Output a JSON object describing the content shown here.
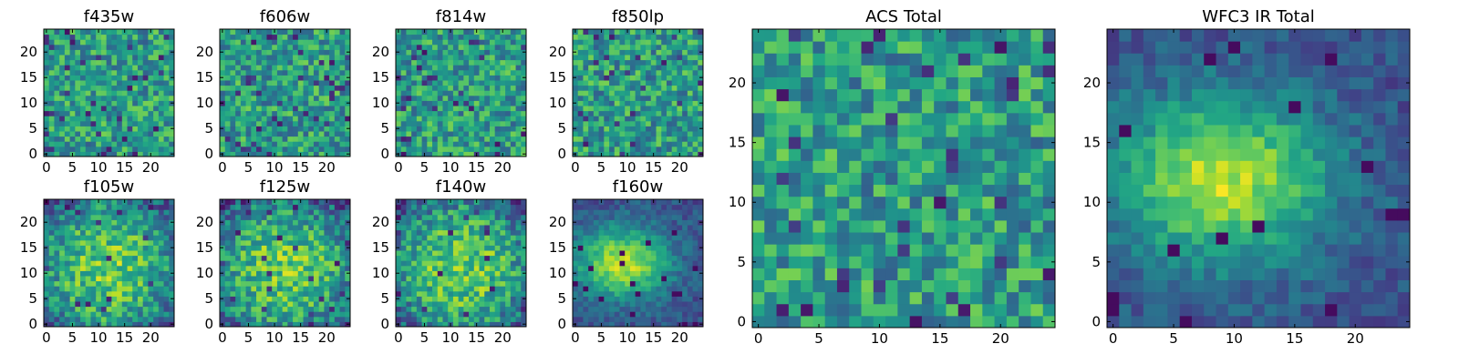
{
  "figure": {
    "description_note": ""
  },
  "chart_data": [
    {
      "type": "heatmap",
      "title": "f435w",
      "grid_size": 25,
      "xlim": [
        0,
        24
      ],
      "ylim": [
        0,
        24
      ],
      "xticks": [
        0,
        5,
        10,
        15,
        20
      ],
      "yticks": [
        0,
        5,
        10,
        15,
        20
      ],
      "xlabel": "",
      "ylabel": "",
      "seed": 11,
      "pattern": "noise",
      "colormap": "viridis"
    },
    {
      "type": "heatmap",
      "title": "f606w",
      "grid_size": 25,
      "xlim": [
        0,
        24
      ],
      "ylim": [
        0,
        24
      ],
      "xticks": [
        0,
        5,
        10,
        15,
        20
      ],
      "yticks": [
        0,
        5,
        10,
        15,
        20
      ],
      "xlabel": "",
      "ylabel": "",
      "seed": 23,
      "pattern": "noise",
      "colormap": "viridis"
    },
    {
      "type": "heatmap",
      "title": "f814w",
      "grid_size": 25,
      "xlim": [
        0,
        24
      ],
      "ylim": [
        0,
        24
      ],
      "xticks": [
        0,
        5,
        10,
        15,
        20
      ],
      "yticks": [
        0,
        5,
        10,
        15,
        20
      ],
      "xlabel": "",
      "ylabel": "",
      "seed": 37,
      "pattern": "noise",
      "colormap": "viridis"
    },
    {
      "type": "heatmap",
      "title": "f850lp",
      "grid_size": 25,
      "xlim": [
        0,
        24
      ],
      "ylim": [
        0,
        24
      ],
      "xticks": [
        0,
        5,
        10,
        15,
        20
      ],
      "yticks": [
        0,
        5,
        10,
        15,
        20
      ],
      "xlabel": "",
      "ylabel": "",
      "seed": 41,
      "pattern": "noise",
      "colormap": "viridis"
    },
    {
      "type": "heatmap",
      "title": "f105w",
      "grid_size": 25,
      "xlim": [
        0,
        24
      ],
      "ylim": [
        0,
        24
      ],
      "xticks": [
        0,
        5,
        10,
        15,
        20
      ],
      "yticks": [
        0,
        5,
        10,
        15,
        20
      ],
      "xlabel": "",
      "ylabel": "",
      "seed": 53,
      "pattern": "smooth",
      "colormap": "viridis"
    },
    {
      "type": "heatmap",
      "title": "f125w",
      "grid_size": 25,
      "xlim": [
        0,
        24
      ],
      "ylim": [
        0,
        24
      ],
      "xticks": [
        0,
        5,
        10,
        15,
        20
      ],
      "yticks": [
        0,
        5,
        10,
        15,
        20
      ],
      "xlabel": "",
      "ylabel": "",
      "seed": 67,
      "pattern": "smooth",
      "colormap": "viridis"
    },
    {
      "type": "heatmap",
      "title": "f140w",
      "grid_size": 25,
      "xlim": [
        0,
        24
      ],
      "ylim": [
        0,
        24
      ],
      "xticks": [
        0,
        5,
        10,
        15,
        20
      ],
      "yticks": [
        0,
        5,
        10,
        15,
        20
      ],
      "xlabel": "",
      "ylabel": "",
      "seed": 79,
      "pattern": "smooth",
      "colormap": "viridis"
    },
    {
      "type": "heatmap",
      "title": "f160w",
      "grid_size": 25,
      "xlim": [
        0,
        24
      ],
      "ylim": [
        0,
        24
      ],
      "xticks": [
        0,
        5,
        10,
        15,
        20
      ],
      "yticks": [
        0,
        5,
        10,
        15,
        20
      ],
      "xlabel": "",
      "ylabel": "",
      "seed": 83,
      "pattern": "blob",
      "colormap": "viridis"
    },
    {
      "type": "heatmap",
      "title": "ACS Total",
      "grid_size": 25,
      "xlim": [
        0,
        24
      ],
      "ylim": [
        0,
        24
      ],
      "xticks": [
        0,
        5,
        10,
        15,
        20
      ],
      "yticks": [
        0,
        5,
        10,
        15,
        20
      ],
      "xlabel": "",
      "ylabel": "",
      "seed": 97,
      "pattern": "noise",
      "colormap": "viridis"
    },
    {
      "type": "heatmap",
      "title": "WFC3 IR Total",
      "grid_size": 25,
      "xlim": [
        0,
        24
      ],
      "ylim": [
        0,
        24
      ],
      "xticks": [
        0,
        5,
        10,
        15,
        20
      ],
      "yticks": [
        0,
        5,
        10,
        15,
        20
      ],
      "xlabel": "",
      "ylabel": "",
      "seed": 101,
      "pattern": "blob",
      "colormap": "viridis"
    }
  ]
}
